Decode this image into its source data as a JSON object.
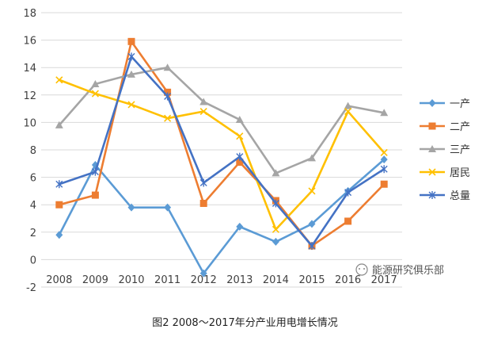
{
  "chart_data": {
    "type": "line",
    "categories": [
      "2008",
      "2009",
      "2010",
      "2011",
      "2012",
      "2013",
      "2014",
      "2015",
      "2016",
      "2017"
    ],
    "ylim": [
      -2,
      18
    ],
    "yticks": [
      -2,
      0,
      2,
      4,
      6,
      8,
      10,
      12,
      14,
      16,
      18
    ],
    "grid": true,
    "legend_position": "right",
    "series": [
      {
        "name": "一产",
        "color": "#5B9BD5",
        "marker": "diamond",
        "values": [
          1.8,
          6.9,
          3.8,
          3.8,
          -1.0,
          2.4,
          1.3,
          2.6,
          5.0,
          7.3
        ]
      },
      {
        "name": "二产",
        "color": "#ED7D31",
        "marker": "square",
        "values": [
          4.0,
          4.7,
          15.9,
          12.2,
          4.1,
          7.1,
          4.3,
          1.0,
          2.8,
          5.5
        ]
      },
      {
        "name": "三产",
        "color": "#A5A5A5",
        "marker": "triangle",
        "values": [
          9.8,
          12.8,
          13.5,
          14.0,
          11.5,
          10.2,
          6.3,
          7.4,
          11.2,
          10.7
        ]
      },
      {
        "name": "居民",
        "color": "#FFC000",
        "marker": "x",
        "values": [
          13.1,
          12.1,
          11.3,
          10.3,
          10.8,
          9.0,
          2.2,
          5.0,
          10.8,
          7.8
        ]
      },
      {
        "name": "总量",
        "color": "#4472C4",
        "marker": "star",
        "values": [
          5.5,
          6.4,
          14.8,
          11.9,
          5.6,
          7.5,
          4.1,
          1.0,
          4.9,
          6.6
        ]
      }
    ]
  },
  "watermark_text": "能源研究俱乐部",
  "caption": "图2 2008～2017年分产业用电增长情况"
}
